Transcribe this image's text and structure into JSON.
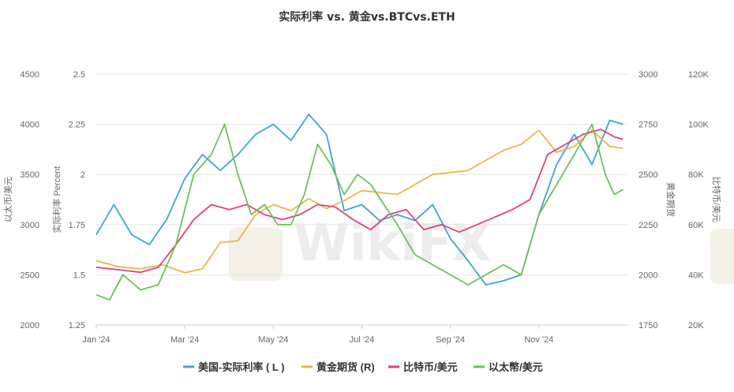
{
  "chart_data": {
    "type": "line",
    "title": "实际利率 vs. 黄金vs.BTCvs.ETH",
    "x_tick_labels": [
      "Jan '24",
      "Mar '24",
      "May '24",
      "Jul '24",
      "Sep '24",
      "Nov '24"
    ],
    "axes": {
      "left_outer": {
        "title": "以太币/美元",
        "ticks": [
          "4500",
          "4000",
          "3500",
          "3000",
          "2500",
          "2000"
        ],
        "range": [
          2000,
          4500
        ]
      },
      "left_inner": {
        "title": "实际利率 Percent",
        "ticks": [
          "2.5",
          "2.25",
          "2",
          "1.75",
          "1.5",
          "1.25"
        ],
        "range": [
          1.25,
          2.5
        ]
      },
      "right_inner": {
        "title": "黄金期货",
        "ticks": [
          "3000",
          "2750",
          "2500",
          "2250",
          "2000",
          "1750"
        ],
        "range": [
          1750,
          3000
        ]
      },
      "right_outer": {
        "title": "比特币/美元",
        "ticks": [
          "120K",
          "100K",
          "80K",
          "60K",
          "40K",
          "20K"
        ],
        "range": [
          20000,
          120000
        ]
      }
    },
    "legend_position": "bottom",
    "grid": true,
    "series": [
      {
        "name": "美国-实际利率 ( L )",
        "axis": "left_inner",
        "color": "#3ea5cf",
        "points": [
          [
            0,
            1.7
          ],
          [
            0.4,
            1.85
          ],
          [
            0.8,
            1.7
          ],
          [
            1.2,
            1.65
          ],
          [
            1.6,
            1.78
          ],
          [
            2.0,
            1.98
          ],
          [
            2.4,
            2.1
          ],
          [
            2.8,
            2.02
          ],
          [
            3.2,
            2.1
          ],
          [
            3.6,
            2.2
          ],
          [
            4.0,
            2.25
          ],
          [
            4.4,
            2.17
          ],
          [
            4.8,
            2.3
          ],
          [
            5.2,
            2.2
          ],
          [
            5.6,
            1.82
          ],
          [
            6.0,
            1.85
          ],
          [
            6.4,
            1.77
          ],
          [
            6.8,
            1.8
          ],
          [
            7.2,
            1.77
          ],
          [
            7.6,
            1.85
          ],
          [
            8.0,
            1.68
          ],
          [
            8.4,
            1.57
          ],
          [
            8.8,
            1.45
          ],
          [
            9.2,
            1.47
          ],
          [
            9.6,
            1.5
          ],
          [
            10.0,
            1.8
          ],
          [
            10.4,
            2.05
          ],
          [
            10.8,
            2.2
          ],
          [
            11.2,
            2.05
          ],
          [
            11.6,
            2.27
          ],
          [
            11.9,
            2.25
          ]
        ]
      },
      {
        "name": "黄金期货 (R)",
        "axis": "right_inner",
        "color": "#e6b84a",
        "points": [
          [
            0,
            2070
          ],
          [
            0.5,
            2040
          ],
          [
            1.0,
            2030
          ],
          [
            1.5,
            2050
          ],
          [
            2.0,
            2010
          ],
          [
            2.4,
            2030
          ],
          [
            2.8,
            2160
          ],
          [
            3.2,
            2170
          ],
          [
            3.6,
            2300
          ],
          [
            4.0,
            2350
          ],
          [
            4.4,
            2320
          ],
          [
            4.8,
            2380
          ],
          [
            5.2,
            2330
          ],
          [
            5.6,
            2370
          ],
          [
            6.0,
            2420
          ],
          [
            6.4,
            2410
          ],
          [
            6.8,
            2400
          ],
          [
            7.2,
            2450
          ],
          [
            7.6,
            2500
          ],
          [
            8.0,
            2510
          ],
          [
            8.4,
            2520
          ],
          [
            8.8,
            2570
          ],
          [
            9.2,
            2620
          ],
          [
            9.6,
            2650
          ],
          [
            10.0,
            2720
          ],
          [
            10.4,
            2610
          ],
          [
            10.8,
            2640
          ],
          [
            11.2,
            2720
          ],
          [
            11.6,
            2640
          ],
          [
            11.9,
            2630
          ]
        ]
      },
      {
        "name": "比特币/美元",
        "axis": "right_outer",
        "color": "#e0407f",
        "points": [
          [
            0,
            43000
          ],
          [
            0.5,
            42000
          ],
          [
            1.0,
            41000
          ],
          [
            1.4,
            43000
          ],
          [
            1.8,
            52000
          ],
          [
            2.2,
            62000
          ],
          [
            2.6,
            68000
          ],
          [
            3.0,
            66000
          ],
          [
            3.4,
            68000
          ],
          [
            3.8,
            64000
          ],
          [
            4.2,
            62000
          ],
          [
            4.6,
            64000
          ],
          [
            5.0,
            68000
          ],
          [
            5.4,
            67000
          ],
          [
            5.8,
            62000
          ],
          [
            6.2,
            58000
          ],
          [
            6.6,
            64000
          ],
          [
            7.0,
            66000
          ],
          [
            7.4,
            58000
          ],
          [
            7.8,
            60000
          ],
          [
            8.2,
            57000
          ],
          [
            8.6,
            60000
          ],
          [
            9.0,
            63000
          ],
          [
            9.4,
            66000
          ],
          [
            9.8,
            70000
          ],
          [
            10.2,
            88000
          ],
          [
            10.6,
            92000
          ],
          [
            11.0,
            96000
          ],
          [
            11.4,
            98000
          ],
          [
            11.7,
            95000
          ],
          [
            11.9,
            94000
          ]
        ]
      },
      {
        "name": "以太幣/美元",
        "axis": "left_outer",
        "color": "#6fbf5a",
        "points": [
          [
            0,
            2300
          ],
          [
            0.3,
            2250
          ],
          [
            0.6,
            2500
          ],
          [
            1.0,
            2350
          ],
          [
            1.4,
            2400
          ],
          [
            1.8,
            2800
          ],
          [
            2.2,
            3500
          ],
          [
            2.6,
            3700
          ],
          [
            2.9,
            4000
          ],
          [
            3.2,
            3500
          ],
          [
            3.5,
            3100
          ],
          [
            3.8,
            3200
          ],
          [
            4.1,
            3000
          ],
          [
            4.4,
            3000
          ],
          [
            4.7,
            3300
          ],
          [
            5.0,
            3800
          ],
          [
            5.3,
            3600
          ],
          [
            5.6,
            3300
          ],
          [
            5.9,
            3500
          ],
          [
            6.2,
            3400
          ],
          [
            6.5,
            3200
          ],
          [
            6.8,
            3000
          ],
          [
            7.2,
            2700
          ],
          [
            7.6,
            2600
          ],
          [
            8.0,
            2500
          ],
          [
            8.4,
            2400
          ],
          [
            8.8,
            2500
          ],
          [
            9.2,
            2600
          ],
          [
            9.6,
            2500
          ],
          [
            10.0,
            3100
          ],
          [
            10.4,
            3400
          ],
          [
            10.8,
            3700
          ],
          [
            11.2,
            4000
          ],
          [
            11.5,
            3500
          ],
          [
            11.7,
            3300
          ],
          [
            11.9,
            3350
          ]
        ]
      }
    ]
  }
}
